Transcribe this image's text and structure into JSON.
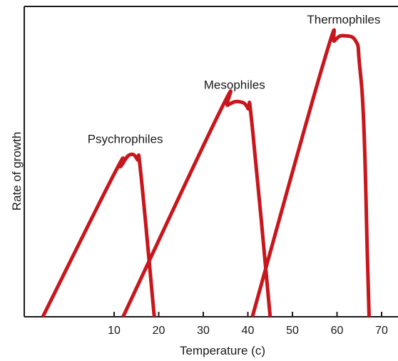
{
  "chart_data": {
    "type": "line",
    "title": "",
    "xlabel": "Temperature (c)",
    "ylabel": "Rate of growth",
    "x_ticks": [
      10,
      20,
      30,
      40,
      50,
      60,
      70
    ],
    "xlim": [
      -6,
      72
    ],
    "ylim": [
      0,
      100
    ],
    "grid": false,
    "legend": "none",
    "line_color": "#c8161d",
    "series": [
      {
        "name": "Psychrophiles",
        "points": [
          [
            -6,
            0
          ],
          [
            10,
            46
          ],
          [
            11.5,
            48.5
          ],
          [
            13.5,
            52.2
          ],
          [
            15.2,
            50.7
          ],
          [
            16,
            46
          ],
          [
            19,
            0
          ]
        ],
        "label_anchor": [
          12.5,
          56
        ]
      },
      {
        "name": "Mesophiles",
        "points": [
          [
            12,
            0
          ],
          [
            33.5,
            65.5
          ],
          [
            35.5,
            68.2
          ],
          [
            38,
            69.3
          ],
          [
            40,
            67.2
          ],
          [
            41,
            61
          ],
          [
            45,
            0
          ]
        ],
        "label_anchor": [
          37,
          73.5
        ]
      },
      {
        "name": "Thermophiles",
        "points": [
          [
            41,
            0
          ],
          [
            57,
            82
          ],
          [
            59.5,
            89
          ],
          [
            62,
            90.5
          ],
          [
            64.3,
            88.6
          ],
          [
            65,
            82
          ],
          [
            66,
            62
          ],
          [
            66.8,
            20
          ],
          [
            67.2,
            0
          ]
        ],
        "label_anchor": [
          61.5,
          94.5
        ]
      }
    ]
  }
}
